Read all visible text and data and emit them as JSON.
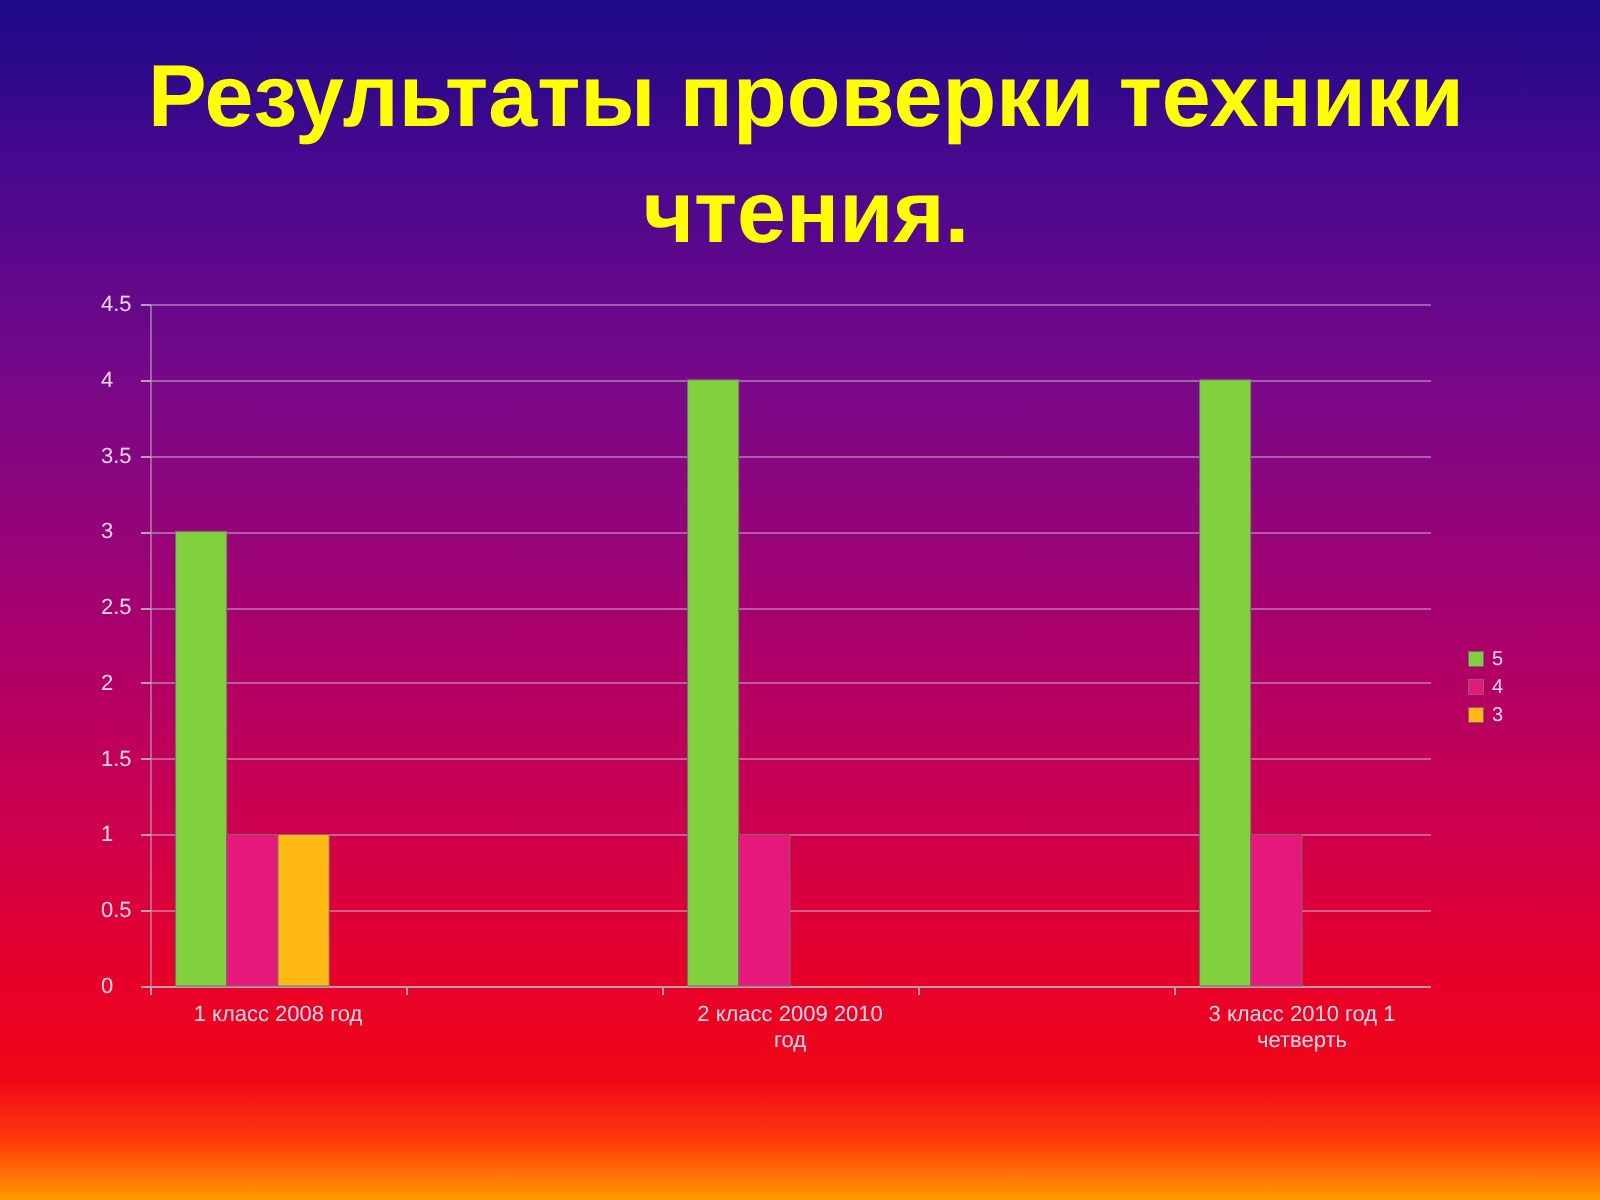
{
  "chart_data": {
    "type": "bar",
    "title": "Результаты проверки техники чтения.",
    "categories": [
      "1 класс 2008 год",
      null,
      "2 класс 2009 2010 год",
      null,
      "3 класс 2010 год 1 четверть"
    ],
    "series": [
      {
        "name": "5",
        "color": "#80d040",
        "values": [
          3,
          null,
          4,
          null,
          4
        ]
      },
      {
        "name": "4",
        "color": "#e8187a",
        "values": [
          1,
          null,
          1,
          null,
          1
        ]
      },
      {
        "name": "3",
        "color": "#ffb814",
        "values": [
          1,
          null,
          null,
          null,
          null
        ]
      }
    ],
    "ylim": [
      0,
      4.5
    ],
    "yticks": [
      0,
      0.5,
      1,
      1.5,
      2,
      2.5,
      3,
      3.5,
      4,
      4.5
    ],
    "grid": "y",
    "legend": "right"
  }
}
